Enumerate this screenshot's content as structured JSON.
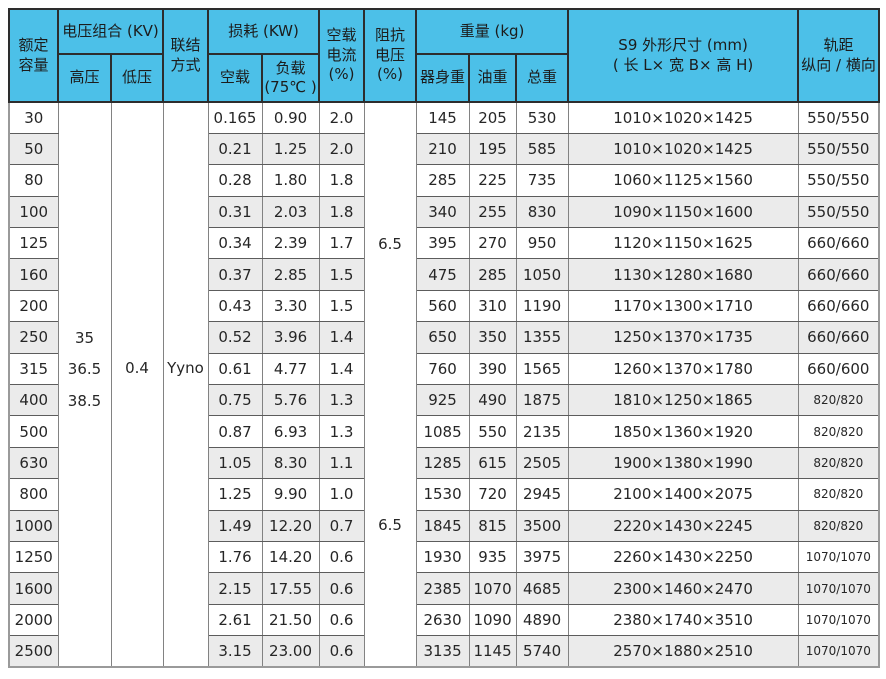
{
  "table": {
    "accent_color": "#4cc0e8",
    "stripe_color": "#ebebeb",
    "header": {
      "rated_capacity": "额定\n容量",
      "voltage_combination": "电压组合 (KV)",
      "high_voltage": "高压",
      "low_voltage": "低压",
      "connection": "联结\n方式",
      "loss": "损耗 (KW)",
      "no_load": "空载",
      "on_load": "负载\n(75℃ )",
      "no_load_current": "空载\n电流\n(%)",
      "impedance_voltage": "阻抗\n电压\n(%)",
      "weight": "重量 (kg)",
      "body_weight": "器身重",
      "oil_weight": "油重",
      "total_weight": "总重",
      "dimensions": "S9 外形尺寸 (mm)\n( 长 L× 宽 B× 高 H)",
      "rail": "轨距\n纵向 / 横向"
    },
    "merged": {
      "high_voltage_values": [
        "35",
        "36.5",
        "38.5"
      ],
      "low_voltage_value": "0.4",
      "connection_value": "Yyno",
      "impedance_values": [
        "6.5",
        "6.5"
      ]
    },
    "rows": [
      {
        "capacity": "30",
        "no_load_loss": "0.165",
        "load_loss": "0.90",
        "current": "2.0",
        "body_weight": "145",
        "oil_weight": "205",
        "total_weight": "530",
        "dimensions": "1010×1020×1425",
        "rail": "550/550",
        "small_rail": false
      },
      {
        "capacity": "50",
        "no_load_loss": "0.21",
        "load_loss": "1.25",
        "current": "2.0",
        "body_weight": "210",
        "oil_weight": "195",
        "total_weight": "585",
        "dimensions": "1010×1020×1425",
        "rail": "550/550",
        "small_rail": false
      },
      {
        "capacity": "80",
        "no_load_loss": "0.28",
        "load_loss": "1.80",
        "current": "1.8",
        "body_weight": "285",
        "oil_weight": "225",
        "total_weight": "735",
        "dimensions": "1060×1125×1560",
        "rail": "550/550",
        "small_rail": false
      },
      {
        "capacity": "100",
        "no_load_loss": "0.31",
        "load_loss": "2.03",
        "current": "1.8",
        "body_weight": "340",
        "oil_weight": "255",
        "total_weight": "830",
        "dimensions": "1090×1150×1600",
        "rail": "550/550",
        "small_rail": false
      },
      {
        "capacity": "125",
        "no_load_loss": "0.34",
        "load_loss": "2.39",
        "current": "1.7",
        "body_weight": "395",
        "oil_weight": "270",
        "total_weight": "950",
        "dimensions": "1120×1150×1625",
        "rail": "660/660",
        "small_rail": false
      },
      {
        "capacity": "160",
        "no_load_loss": "0.37",
        "load_loss": "2.85",
        "current": "1.5",
        "body_weight": "475",
        "oil_weight": "285",
        "total_weight": "1050",
        "dimensions": "1130×1280×1680",
        "rail": "660/660",
        "small_rail": false
      },
      {
        "capacity": "200",
        "no_load_loss": "0.43",
        "load_loss": "3.30",
        "current": "1.5",
        "body_weight": "560",
        "oil_weight": "310",
        "total_weight": "1190",
        "dimensions": "1170×1300×1710",
        "rail": "660/660",
        "small_rail": false
      },
      {
        "capacity": "250",
        "no_load_loss": "0.52",
        "load_loss": "3.96",
        "current": "1.4",
        "body_weight": "650",
        "oil_weight": "350",
        "total_weight": "1355",
        "dimensions": "1250×1370×1735",
        "rail": "660/660",
        "small_rail": false
      },
      {
        "capacity": "315",
        "no_load_loss": "0.61",
        "load_loss": "4.77",
        "current": "1.4",
        "body_weight": "760",
        "oil_weight": "390",
        "total_weight": "1565",
        "dimensions": "1260×1370×1780",
        "rail": "660/600",
        "small_rail": false
      },
      {
        "capacity": "400",
        "no_load_loss": "0.75",
        "load_loss": "5.76",
        "current": "1.3",
        "body_weight": "925",
        "oil_weight": "490",
        "total_weight": "1875",
        "dimensions": "1810×1250×1865",
        "rail": "820/820",
        "small_rail": true
      },
      {
        "capacity": "500",
        "no_load_loss": "0.87",
        "load_loss": "6.93",
        "current": "1.3",
        "body_weight": "1085",
        "oil_weight": "550",
        "total_weight": "2135",
        "dimensions": "1850×1360×1920",
        "rail": "820/820",
        "small_rail": true
      },
      {
        "capacity": "630",
        "no_load_loss": "1.05",
        "load_loss": "8.30",
        "current": "1.1",
        "body_weight": "1285",
        "oil_weight": "615",
        "total_weight": "2505",
        "dimensions": "1900×1380×1990",
        "rail": "820/820",
        "small_rail": true
      },
      {
        "capacity": "800",
        "no_load_loss": "1.25",
        "load_loss": "9.90",
        "current": "1.0",
        "body_weight": "1530",
        "oil_weight": "720",
        "total_weight": "2945",
        "dimensions": "2100×1400×2075",
        "rail": "820/820",
        "small_rail": true
      },
      {
        "capacity": "1000",
        "no_load_loss": "1.49",
        "load_loss": "12.20",
        "current": "0.7",
        "body_weight": "1845",
        "oil_weight": "815",
        "total_weight": "3500",
        "dimensions": "2220×1430×2245",
        "rail": "820/820",
        "small_rail": true
      },
      {
        "capacity": "1250",
        "no_load_loss": "1.76",
        "load_loss": "14.20",
        "current": "0.6",
        "body_weight": "1930",
        "oil_weight": "935",
        "total_weight": "3975",
        "dimensions": "2260×1430×2250",
        "rail": "1070/1070",
        "small_rail": true
      },
      {
        "capacity": "1600",
        "no_load_loss": "2.15",
        "load_loss": "17.55",
        "current": "0.6",
        "body_weight": "2385",
        "oil_weight": "1070",
        "total_weight": "4685",
        "dimensions": "2300×1460×2470",
        "rail": "1070/1070",
        "small_rail": true
      },
      {
        "capacity": "2000",
        "no_load_loss": "2.61",
        "load_loss": "21.50",
        "current": "0.6",
        "body_weight": "2630",
        "oil_weight": "1090",
        "total_weight": "4890",
        "dimensions": "2380×1740×3510",
        "rail": "1070/1070",
        "small_rail": true
      },
      {
        "capacity": "2500",
        "no_load_loss": "3.15",
        "load_loss": "23.00",
        "current": "0.6",
        "body_weight": "3135",
        "oil_weight": "1145",
        "total_weight": "5740",
        "dimensions": "2570×1880×2510",
        "rail": "1070/1070",
        "small_rail": true
      }
    ]
  }
}
